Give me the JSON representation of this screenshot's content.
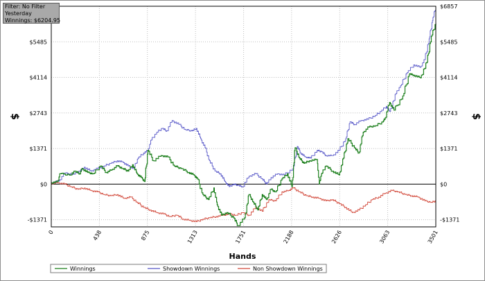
{
  "filter_box": {
    "line1": "Filter: No Filter",
    "line2": "Yesterday",
    "line3": "Winnings: $6204.95"
  },
  "colors": {
    "winnings": "#1c7f1c",
    "showdown": "#5858c8",
    "non_showdown": "#d24a3c",
    "grid": "#bdbdbd",
    "zero_line": "#000000"
  },
  "chart_data": {
    "type": "line",
    "title": "",
    "xlabel": "Hands",
    "ylabel": "$",
    "xlim": [
      0,
      3501
    ],
    "ylim": [
      -1650,
      6857
    ],
    "x_ticks": [
      0,
      438,
      875,
      1313,
      1751,
      2188,
      2626,
      3063,
      3501
    ],
    "y_ticks": [
      {
        "value": -1371,
        "label": "-$1371"
      },
      {
        "value": 0,
        "label": "$0"
      },
      {
        "value": 1371,
        "label": "$1371"
      },
      {
        "value": 2743,
        "label": "$2743"
      },
      {
        "value": 4114,
        "label": "$4114"
      },
      {
        "value": 5485,
        "label": "$5485"
      },
      {
        "value": 6857,
        "label": "$6857"
      }
    ],
    "grid": true,
    "legend_position": "bottom",
    "series": [
      {
        "name": "Winnings",
        "color_key": "winnings",
        "points": [
          [
            0,
            50
          ],
          [
            60,
            100
          ],
          [
            80,
            400
          ],
          [
            180,
            350
          ],
          [
            210,
            500
          ],
          [
            260,
            400
          ],
          [
            280,
            600
          ],
          [
            330,
            450
          ],
          [
            380,
            400
          ],
          [
            450,
            700
          ],
          [
            500,
            450
          ],
          [
            550,
            550
          ],
          [
            600,
            700
          ],
          [
            650,
            600
          ],
          [
            700,
            500
          ],
          [
            740,
            750
          ],
          [
            780,
            400
          ],
          [
            820,
            250
          ],
          [
            850,
            100
          ],
          [
            880,
            1300
          ],
          [
            930,
            900
          ],
          [
            1000,
            1100
          ],
          [
            1060,
            1050
          ],
          [
            1120,
            700
          ],
          [
            1180,
            600
          ],
          [
            1250,
            450
          ],
          [
            1300,
            350
          ],
          [
            1330,
            200
          ],
          [
            1380,
            -400
          ],
          [
            1430,
            -600
          ],
          [
            1480,
            -150
          ],
          [
            1510,
            -800
          ],
          [
            1550,
            -1200
          ],
          [
            1600,
            -1100
          ],
          [
            1660,
            -1300
          ],
          [
            1700,
            -1600
          ],
          [
            1760,
            -1300
          ],
          [
            1800,
            -400
          ],
          [
            1840,
            -700
          ],
          [
            1880,
            -1000
          ],
          [
            1920,
            -400
          ],
          [
            1960,
            -600
          ],
          [
            2000,
            -200
          ],
          [
            2040,
            -300
          ],
          [
            2100,
            200
          ],
          [
            2150,
            400
          ],
          [
            2190,
            -100
          ],
          [
            2220,
            1400
          ],
          [
            2260,
            1000
          ],
          [
            2300,
            800
          ],
          [
            2350,
            900
          ],
          [
            2420,
            950
          ],
          [
            2440,
            0
          ],
          [
            2460,
            400
          ],
          [
            2500,
            700
          ],
          [
            2560,
            500
          ],
          [
            2620,
            350
          ],
          [
            2660,
            1000
          ],
          [
            2700,
            1750
          ],
          [
            2760,
            1400
          ],
          [
            2800,
            1200
          ],
          [
            2840,
            2000
          ],
          [
            2890,
            2200
          ],
          [
            2950,
            2250
          ],
          [
            3020,
            2400
          ],
          [
            3040,
            2550
          ],
          [
            3080,
            3150
          ],
          [
            3120,
            2850
          ],
          [
            3200,
            3400
          ],
          [
            3260,
            4250
          ],
          [
            3300,
            4200
          ],
          [
            3360,
            4100
          ],
          [
            3420,
            4700
          ],
          [
            3460,
            5700
          ],
          [
            3501,
            6200
          ]
        ]
      },
      {
        "name": "Showdown Winnings",
        "color_key": "showdown",
        "points": [
          [
            0,
            50
          ],
          [
            70,
            120
          ],
          [
            120,
            420
          ],
          [
            200,
            380
          ],
          [
            260,
            500
          ],
          [
            300,
            650
          ],
          [
            360,
            500
          ],
          [
            420,
            600
          ],
          [
            480,
            700
          ],
          [
            540,
            800
          ],
          [
            600,
            900
          ],
          [
            650,
            850
          ],
          [
            700,
            700
          ],
          [
            750,
            600
          ],
          [
            790,
            1000
          ],
          [
            840,
            1200
          ],
          [
            880,
            1300
          ],
          [
            910,
            1700
          ],
          [
            960,
            2000
          ],
          [
            1010,
            2150
          ],
          [
            1050,
            2050
          ],
          [
            1100,
            2450
          ],
          [
            1160,
            2300
          ],
          [
            1220,
            2100
          ],
          [
            1280,
            2050
          ],
          [
            1320,
            2150
          ],
          [
            1360,
            1750
          ],
          [
            1400,
            1400
          ],
          [
            1440,
            900
          ],
          [
            1490,
            500
          ],
          [
            1540,
            400
          ],
          [
            1580,
            100
          ],
          [
            1620,
            -100
          ],
          [
            1660,
            0
          ],
          [
            1700,
            -50
          ],
          [
            1740,
            -100
          ],
          [
            1800,
            300
          ],
          [
            1860,
            400
          ],
          [
            1920,
            200
          ],
          [
            1960,
            0
          ],
          [
            2000,
            250
          ],
          [
            2060,
            400
          ],
          [
            2120,
            350
          ],
          [
            2200,
            600
          ],
          [
            2240,
            1450
          ],
          [
            2270,
            1200
          ],
          [
            2310,
            1050
          ],
          [
            2360,
            1000
          ],
          [
            2420,
            1300
          ],
          [
            2460,
            1250
          ],
          [
            2500,
            1100
          ],
          [
            2560,
            1100
          ],
          [
            2620,
            1300
          ],
          [
            2680,
            1750
          ],
          [
            2720,
            2400
          ],
          [
            2760,
            2300
          ],
          [
            2820,
            2450
          ],
          [
            2880,
            2500
          ],
          [
            2950,
            2650
          ],
          [
            3000,
            2800
          ],
          [
            3050,
            3000
          ],
          [
            3080,
            2800
          ],
          [
            3140,
            3500
          ],
          [
            3180,
            3800
          ],
          [
            3240,
            4300
          ],
          [
            3300,
            4600
          ],
          [
            3360,
            4500
          ],
          [
            3400,
            4800
          ],
          [
            3440,
            5600
          ],
          [
            3470,
            6300
          ],
          [
            3501,
            6857
          ]
        ]
      },
      {
        "name": "Non Showdown Winnings",
        "color_key": "non_showdown",
        "points": [
          [
            0,
            30
          ],
          [
            60,
            50
          ],
          [
            120,
            0
          ],
          [
            180,
            -100
          ],
          [
            240,
            -200
          ],
          [
            300,
            -150
          ],
          [
            360,
            -250
          ],
          [
            420,
            -300
          ],
          [
            480,
            -400
          ],
          [
            540,
            -450
          ],
          [
            600,
            -400
          ],
          [
            660,
            -550
          ],
          [
            720,
            -500
          ],
          [
            780,
            -700
          ],
          [
            840,
            -900
          ],
          [
            900,
            -1000
          ],
          [
            960,
            -1100
          ],
          [
            1020,
            -1150
          ],
          [
            1080,
            -1250
          ],
          [
            1140,
            -1200
          ],
          [
            1200,
            -1350
          ],
          [
            1260,
            -1400
          ],
          [
            1320,
            -1450
          ],
          [
            1380,
            -1350
          ],
          [
            1440,
            -1300
          ],
          [
            1500,
            -1250
          ],
          [
            1560,
            -1200
          ],
          [
            1620,
            -1150
          ],
          [
            1680,
            -1200
          ],
          [
            1740,
            -1100
          ],
          [
            1800,
            -1200
          ],
          [
            1860,
            -900
          ],
          [
            1920,
            -1050
          ],
          [
            1980,
            -600
          ],
          [
            2040,
            -650
          ],
          [
            2100,
            -300
          ],
          [
            2160,
            -250
          ],
          [
            2200,
            -150
          ],
          [
            2260,
            -300
          ],
          [
            2320,
            -450
          ],
          [
            2380,
            -500
          ],
          [
            2440,
            -550
          ],
          [
            2500,
            -650
          ],
          [
            2560,
            -600
          ],
          [
            2620,
            -750
          ],
          [
            2680,
            -900
          ],
          [
            2740,
            -1100
          ],
          [
            2800,
            -1000
          ],
          [
            2860,
            -800
          ],
          [
            2920,
            -600
          ],
          [
            2980,
            -500
          ],
          [
            3040,
            -350
          ],
          [
            3100,
            -250
          ],
          [
            3160,
            -300
          ],
          [
            3220,
            -400
          ],
          [
            3280,
            -450
          ],
          [
            3340,
            -500
          ],
          [
            3400,
            -650
          ],
          [
            3460,
            -700
          ],
          [
            3501,
            -650
          ]
        ]
      }
    ]
  }
}
